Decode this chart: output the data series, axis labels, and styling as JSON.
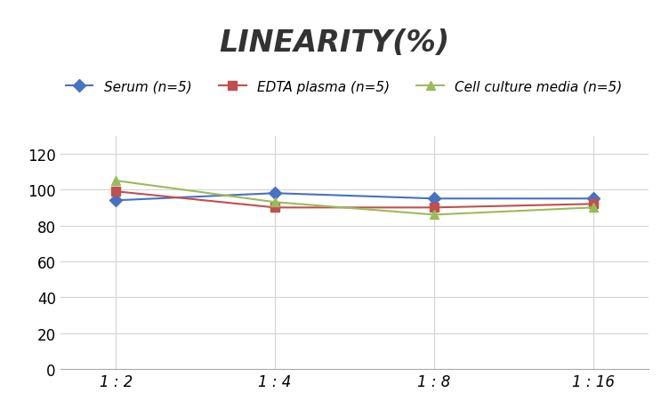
{
  "title": "LINEARITY(%)",
  "x_labels": [
    "1 : 2",
    "1 : 4",
    "1 : 8",
    "1 : 16"
  ],
  "x_positions": [
    0,
    1,
    2,
    3
  ],
  "series": [
    {
      "name": "Serum (n=5)",
      "values": [
        94,
        98,
        95,
        95
      ],
      "color": "#4472C4",
      "marker": "D",
      "linewidth": 1.5
    },
    {
      "name": "EDTA plasma (n=5)",
      "values": [
        99,
        90,
        90,
        92
      ],
      "color": "#C0504D",
      "marker": "s",
      "linewidth": 1.5
    },
    {
      "name": "Cell culture media (n=5)",
      "values": [
        105,
        93,
        86,
        90
      ],
      "color": "#9BBB59",
      "marker": "^",
      "linewidth": 1.5
    }
  ],
  "ylim": [
    0,
    130
  ],
  "yticks": [
    0,
    20,
    40,
    60,
    80,
    100,
    120
  ],
  "background_color": "#ffffff",
  "grid_color": "#d3d3d3",
  "title_fontsize": 24,
  "legend_fontsize": 11,
  "tick_fontsize": 12
}
